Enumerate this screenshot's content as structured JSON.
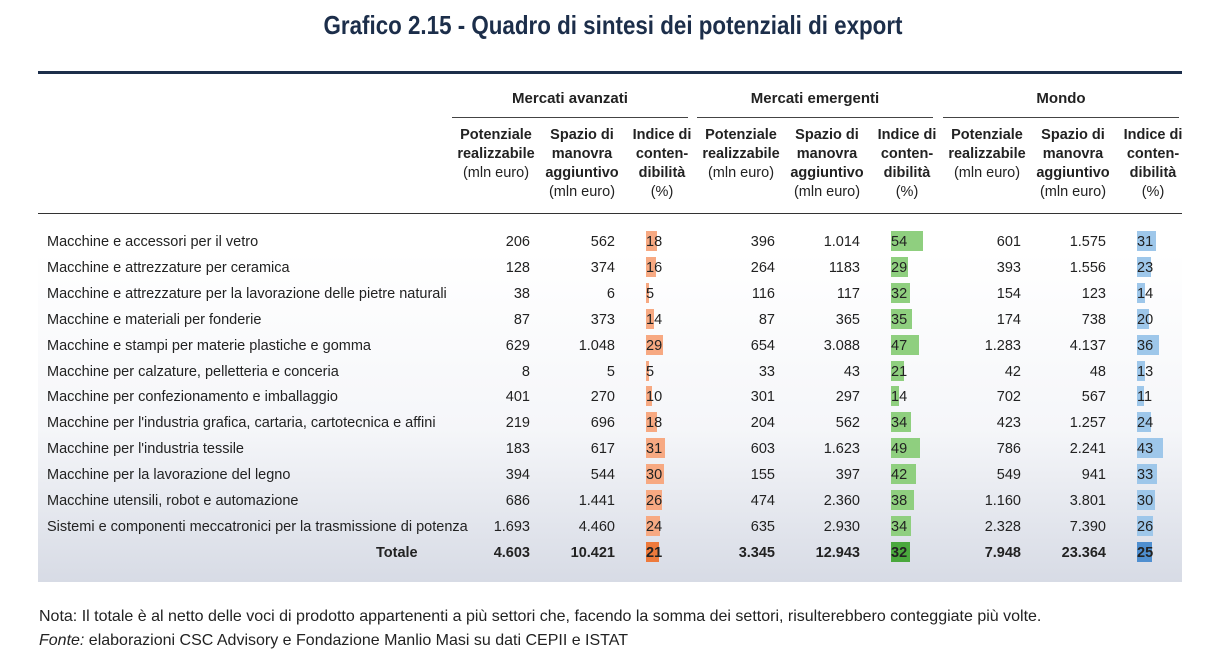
{
  "title": "Grafico 2.15 - Quadro di sintesi dei potenziali di export",
  "chart_data": {
    "type": "table",
    "groups": [
      "Mercati avanzati",
      "Mercati emergenti",
      "Mondo"
    ],
    "column_headers": [
      [
        "Potenziale",
        "realizzabile",
        "(mln euro)"
      ],
      [
        "Spazio di",
        "manovra",
        "aggiuntivo",
        "(mln euro)"
      ],
      [
        "Indice di",
        "conten-",
        "dibilità",
        "(%)"
      ]
    ],
    "index_colors": [
      "#f7a982",
      "#8fcf7f",
      "#9ec7ea"
    ],
    "index_total_colors": [
      "#ee7a3c",
      "#4aa83d",
      "#4f8fd0"
    ],
    "rows": [
      {
        "label": "Macchine e accessori per il vetro",
        "vals": [
          "206",
          "562",
          "18",
          "396",
          "1.014",
          "54",
          "601",
          "1.575",
          "31"
        ]
      },
      {
        "label": "Macchine e attrezzature per ceramica",
        "vals": [
          "128",
          "374",
          "16",
          "264",
          "1183",
          "29",
          "393",
          "1.556",
          "23"
        ]
      },
      {
        "label": "Macchine e attrezzature per la lavorazione delle pietre naturali",
        "vals": [
          "38",
          "6",
          "5",
          "116",
          "117",
          "32",
          "154",
          "123",
          "14"
        ]
      },
      {
        "label": "Macchine e materiali per fonderie",
        "vals": [
          "87",
          "373",
          "14",
          "87",
          "365",
          "35",
          "174",
          "738",
          "20"
        ]
      },
      {
        "label": "Macchine e stampi per materie plastiche e gomma",
        "vals": [
          "629",
          "1.048",
          "29",
          "654",
          "3.088",
          "47",
          "1.283",
          "4.137",
          "36"
        ]
      },
      {
        "label": "Macchine per calzature, pelletteria e conceria",
        "vals": [
          "8",
          "5",
          "5",
          "33",
          "43",
          "21",
          "42",
          "48",
          "13"
        ]
      },
      {
        "label": "Macchine per confezionamento e imballaggio",
        "vals": [
          "401",
          "270",
          "10",
          "301",
          "297",
          "14",
          "702",
          "567",
          "11"
        ]
      },
      {
        "label": "Macchine per l'industria grafica, cartaria, cartotecnica e affini",
        "vals": [
          "219",
          "696",
          "18",
          "204",
          "562",
          "34",
          "423",
          "1.257",
          "24"
        ]
      },
      {
        "label": "Macchine per l'industria tessile",
        "vals": [
          "183",
          "617",
          "31",
          "603",
          "1.623",
          "49",
          "786",
          "2.241",
          "43"
        ]
      },
      {
        "label": "Macchine per la lavorazione del legno",
        "vals": [
          "394",
          "544",
          "30",
          "155",
          "397",
          "42",
          "549",
          "941",
          "33"
        ]
      },
      {
        "label": "Macchine utensili, robot e automazione",
        "vals": [
          "686",
          "1.441",
          "26",
          "474",
          "2.360",
          "38",
          "1.160",
          "3.801",
          "30"
        ]
      },
      {
        "label": "Sistemi e componenti meccatronici per la trasmissione di potenza",
        "vals": [
          "1.693",
          "4.460",
          "24",
          "635",
          "2.930",
          "34",
          "2.328",
          "7.390",
          "26"
        ]
      }
    ],
    "total": {
      "label": "Totale",
      "vals": [
        "4.603",
        "10.421",
        "21",
        "3.345",
        "12.943",
        "32",
        "7.948",
        "23.364",
        "25"
      ]
    }
  },
  "note": {
    "text": "Nota: Il totale è al netto delle voci di prodotto appartenenti a più settori che, facendo la somma dei settori, risulterebbero conteggiate più volte.",
    "source_label": "Fonte:",
    "source_text": " elaborazioni CSC Advisory e Fondazione Manlio Masi su dati CEPII e ISTAT"
  }
}
